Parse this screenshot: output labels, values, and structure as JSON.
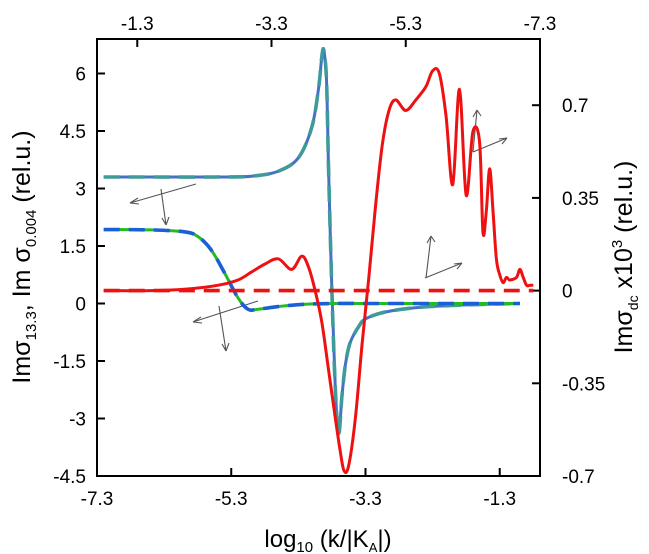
{
  "chart_data": {
    "type": "line",
    "bottom_axis": {
      "ticks": [
        "-7.3",
        "-5.3",
        "-3.3",
        "-1.3"
      ],
      "tick_values": [
        -7.3,
        -5.3,
        -3.3,
        -1.3
      ],
      "label_main": "log",
      "label_sub": "10",
      "label_rest": " (k/|K",
      "label_rest_sub": "A",
      "label_end": "|)",
      "range": [
        -7.3,
        -0.7
      ]
    },
    "top_axis": {
      "ticks": [
        "-1.3",
        "-3.3",
        "-5.3",
        "-7.3"
      ],
      "tick_values": [
        -1.3,
        -3.3,
        -5.3,
        -7.3
      ],
      "range": [
        -0.7,
        -7.3
      ]
    },
    "left_axis": {
      "ticks": [
        "6",
        "4.5",
        "3",
        "1.5",
        "0",
        "-1.5",
        "-3",
        "-4.5"
      ],
      "tick_values": [
        6,
        4.5,
        3,
        1.5,
        0,
        -1.5,
        -3,
        -4.5
      ],
      "range": [
        -4.5,
        6.9
      ],
      "label_a": "Imσ",
      "label_a_sub": "13.3",
      "label_b": ", Im σ",
      "label_b_sub": "0.004",
      "label_c": " (rel.u.)"
    },
    "right_axis": {
      "ticks": [
        "0.7",
        "0.35",
        "0",
        "-0.35",
        "-0.7"
      ],
      "tick_values": [
        0.7,
        0.35,
        0,
        -0.35,
        -0.7
      ],
      "range": [
        -0.7,
        0.95
      ],
      "label_a": "Imσ",
      "label_a_sub": "dc",
      "label_b": " x10",
      "label_b_sup": "3",
      "label_c": " (rel.u.)"
    },
    "series": [
      {
        "color": "#4472c4",
        "axis": "left",
        "dash": false,
        "x": [
          -7.2,
          -6.5,
          -5.5,
          -5.0,
          -4.6,
          -4.3,
          -4.1,
          -4.0,
          -3.95,
          -3.92,
          -3.88,
          -3.85,
          -3.8,
          -3.75,
          -3.7,
          -3.65,
          -3.6,
          -3.55,
          -3.5,
          -3.4,
          -3.3,
          -3.0,
          -2.5,
          -2.0,
          -1.5,
          -1.0
        ],
        "y": [
          3.3,
          3.3,
          3.3,
          3.32,
          3.45,
          3.8,
          4.6,
          5.6,
          6.45,
          6.6,
          5.8,
          3.5,
          0.3,
          -2.2,
          -3.4,
          -2.4,
          -1.6,
          -1.15,
          -0.9,
          -0.6,
          -0.4,
          -0.22,
          -0.1,
          -0.05,
          -0.02,
          0.0
        ]
      },
      {
        "color": "#3f9a9a",
        "axis": "left",
        "dash": true,
        "x": [
          -7.2,
          -6.5,
          -5.5,
          -5.0,
          -4.6,
          -4.3,
          -4.1,
          -4.0,
          -3.95,
          -3.92,
          -3.88,
          -3.85,
          -3.8,
          -3.75,
          -3.7,
          -3.65,
          -3.6,
          -3.55,
          -3.5,
          -3.4,
          -3.3,
          -3.0,
          -2.5,
          -2.0,
          -1.5,
          -1.0
        ],
        "y": [
          3.3,
          3.3,
          3.3,
          3.32,
          3.45,
          3.8,
          4.6,
          5.6,
          6.45,
          6.6,
          5.8,
          3.5,
          0.3,
          -2.2,
          -3.4,
          -2.4,
          -1.6,
          -1.15,
          -0.9,
          -0.6,
          -0.4,
          -0.22,
          -0.1,
          -0.05,
          -0.02,
          0.0
        ]
      },
      {
        "color": "#22bb22",
        "axis": "left",
        "dash": false,
        "x": [
          -7.2,
          -6.5,
          -6.0,
          -5.8,
          -5.6,
          -5.4,
          -5.2,
          -5.05,
          -4.9,
          -4.6,
          -4.2,
          -3.8,
          -3.3,
          -2.5,
          -1.8,
          -1.0
        ],
        "y": [
          1.93,
          1.92,
          1.87,
          1.75,
          1.4,
          0.8,
          0.15,
          -0.15,
          -0.15,
          -0.08,
          -0.02,
          0.0,
          0.0,
          0.0,
          0.0,
          0.0
        ]
      },
      {
        "color": "#1a5fd6",
        "axis": "left",
        "dash": true,
        "x": [
          -7.2,
          -6.5,
          -6.0,
          -5.8,
          -5.6,
          -5.4,
          -5.2,
          -5.05,
          -4.9,
          -4.6,
          -4.2,
          -3.8,
          -3.3,
          -2.5,
          -1.8,
          -1.0
        ],
        "y": [
          1.93,
          1.92,
          1.87,
          1.75,
          1.4,
          0.8,
          0.15,
          -0.15,
          -0.15,
          -0.08,
          -0.02,
          0.0,
          0.0,
          0.0,
          0.0,
          0.0
        ]
      },
      {
        "color": "#ee1111",
        "axis": "right",
        "dash": false,
        "x": [
          -7.2,
          -6.5,
          -6.0,
          -5.5,
          -5.2,
          -5.0,
          -4.8,
          -4.6,
          -4.4,
          -4.25,
          -4.15,
          -4.05,
          -3.95,
          -3.85,
          -3.75,
          -3.68,
          -3.62,
          -3.55,
          -3.45,
          -3.35,
          -3.25,
          -3.15,
          -3.05,
          -2.95,
          -2.85,
          -2.7,
          -2.55,
          -2.4,
          -2.3,
          -2.2,
          -2.1,
          -2.0,
          -1.9,
          -1.8,
          -1.7,
          -1.6,
          -1.55,
          -1.5,
          -1.45,
          -1.4,
          -1.35,
          -1.3,
          -1.25,
          -1.2,
          -1.15,
          -1.05,
          -1.0,
          -0.95,
          -0.9,
          -0.85,
          -0.8
        ],
        "y": [
          0.0,
          0.0,
          0.005,
          0.02,
          0.04,
          0.07,
          0.1,
          0.12,
          0.08,
          0.13,
          0.09,
          0.0,
          -0.12,
          -0.3,
          -0.48,
          -0.6,
          -0.68,
          -0.66,
          -0.48,
          -0.2,
          0.05,
          0.32,
          0.55,
          0.68,
          0.72,
          0.68,
          0.72,
          0.77,
          0.83,
          0.82,
          0.66,
          0.4,
          0.76,
          0.36,
          0.6,
          0.56,
          0.22,
          0.3,
          0.46,
          0.3,
          0.12,
          0.06,
          0.03,
          0.05,
          0.04,
          0.05,
          0.08,
          0.05,
          0.02,
          0.02,
          0.02
        ]
      },
      {
        "color": "#ee1111",
        "axis": "right",
        "dash": true,
        "x": [
          -7.2,
          -6.0,
          -5.0,
          -4.0,
          -3.0,
          -2.0,
          -1.0,
          -0.8
        ],
        "y": [
          0.0,
          0.0,
          0.0,
          0.0,
          0.0,
          0.0,
          0.0,
          0.0
        ]
      }
    ]
  }
}
